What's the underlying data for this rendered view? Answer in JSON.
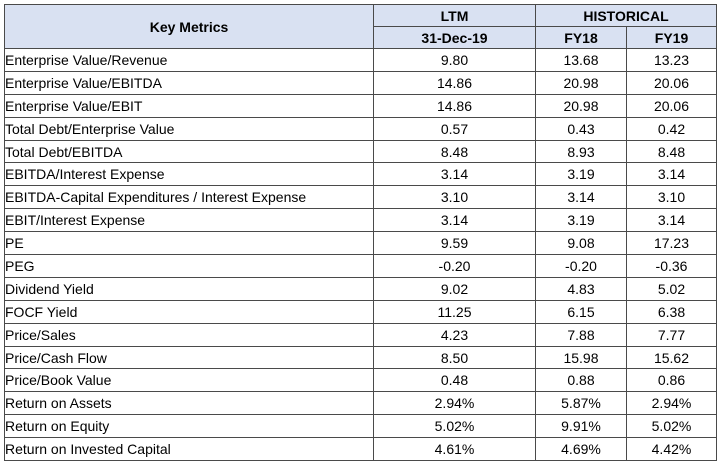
{
  "header": {
    "key_metrics": "Key Metrics",
    "ltm": "LTM",
    "historical": "HISTORICAL",
    "ltm_date": "31-Dec-19",
    "fy18": "FY18",
    "fy19": "FY19"
  },
  "rows": [
    {
      "metric": "Enterprise Value/Revenue",
      "ltm": "9.80",
      "fy18": "13.68",
      "fy19": "13.23"
    },
    {
      "metric": "Enterprise Value/EBITDA",
      "ltm": "14.86",
      "fy18": "20.98",
      "fy19": "20.06"
    },
    {
      "metric": "Enterprise Value/EBIT",
      "ltm": "14.86",
      "fy18": "20.98",
      "fy19": "20.06"
    },
    {
      "metric": "Total Debt/Enterprise Value",
      "ltm": "0.57",
      "fy18": "0.43",
      "fy19": "0.42"
    },
    {
      "metric": "Total Debt/EBITDA",
      "ltm": "8.48",
      "fy18": "8.93",
      "fy19": "8.48"
    },
    {
      "metric": "EBITDA/Interest Expense",
      "ltm": "3.14",
      "fy18": "3.19",
      "fy19": "3.14"
    },
    {
      "metric": "EBITDA-Capital Expenditures / Interest Expense",
      "ltm": "3.10",
      "fy18": "3.14",
      "fy19": "3.10"
    },
    {
      "metric": "EBIT/Interest Expense",
      "ltm": "3.14",
      "fy18": "3.19",
      "fy19": "3.14"
    },
    {
      "metric": "PE",
      "ltm": "9.59",
      "fy18": "9.08",
      "fy19": "17.23"
    },
    {
      "metric": "PEG",
      "ltm": "-0.20",
      "fy18": "-0.20",
      "fy19": "-0.36"
    },
    {
      "metric": "Dividend Yield",
      "ltm": "9.02",
      "fy18": "4.83",
      "fy19": "5.02"
    },
    {
      "metric": "FOCF Yield",
      "ltm": "11.25",
      "fy18": "6.15",
      "fy19": "6.38"
    },
    {
      "metric": "Price/Sales",
      "ltm": "4.23",
      "fy18": "7.88",
      "fy19": "7.77"
    },
    {
      "metric": "Price/Cash Flow",
      "ltm": "8.50",
      "fy18": "15.98",
      "fy19": "15.62"
    },
    {
      "metric": "Price/Book Value",
      "ltm": "0.48",
      "fy18": "0.88",
      "fy19": "0.86"
    },
    {
      "metric": "Return on Assets",
      "ltm": "2.94%",
      "fy18": "5.87%",
      "fy19": "2.94%"
    },
    {
      "metric": "Return on Equity",
      "ltm": "5.02%",
      "fy18": "9.91%",
      "fy19": "5.02%"
    },
    {
      "metric": "Return on Invested Capital",
      "ltm": "4.61%",
      "fy18": "4.69%",
      "fy19": "4.42%"
    }
  ],
  "colors": {
    "header_fill": "#d9e1f2",
    "border": "#4a4a4a"
  }
}
